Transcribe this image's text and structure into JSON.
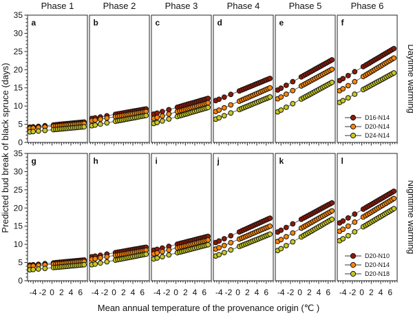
{
  "figure": {
    "column_titles": [
      "Phase 1",
      "Phase 2",
      "Phase 3",
      "Phase 4",
      "Phase 5",
      "Phase 6"
    ],
    "row_labels": [
      "Daytime warming",
      "Nighttime warming"
    ],
    "x_axis_label": "Mean annual temperature of the provenance origin (℃ )",
    "y_axis_label": "Predicted bud break of black spruce (days)"
  },
  "chart_data": {
    "type": "scatter",
    "title": "",
    "xlabel": "Mean annual temperature of the provenance origin (℃ )",
    "ylabel": "Predicted bud break of black spruce (days)",
    "xlim": [
      -5.2,
      7.5
    ],
    "ylim": [
      0,
      35
    ],
    "x_ticks": [
      -4,
      -2,
      0,
      2,
      4,
      6
    ],
    "x_tick_labels": [
      "-4",
      "-2",
      "0",
      "2",
      "4",
      "6"
    ],
    "y_ticks": [
      0,
      5,
      10,
      15,
      20,
      25,
      30,
      35
    ],
    "grid": false,
    "legend_position": "inside lower-right of last panel of each row",
    "series_colors": [
      "#8E1A08",
      "#FC8608",
      "#C8C822"
    ],
    "marker_outline": "#111111",
    "line_color": "#555555",
    "x_values": [
      -4.7,
      -4.0,
      -2.9,
      -1.5,
      0.3,
      0.8,
      1.2,
      1.6,
      2.0,
      2.4,
      2.8,
      3.2,
      3.6,
      4.0,
      4.4,
      4.8,
      5.2,
      5.6,
      6.0,
      6.4,
      6.8
    ],
    "note": "Each series is linear: y runs from y_start at x = -4.7 to y_end at x = 6.8 (days to bud break).",
    "rows": [
      {
        "warming": "Daytime warming",
        "legend": [
          "D16-N14",
          "D20-N14",
          "D24-N14"
        ],
        "panels": [
          {
            "letter": "a",
            "phase": "Phase 1",
            "series": [
              {
                "name": "D16-N14",
                "y_start": 4.2,
                "y_end": 5.6
              },
              {
                "name": "D20-N14",
                "y_start": 3.9,
                "y_end": 5.2
              },
              {
                "name": "D24-N14",
                "y_start": 2.9,
                "y_end": 4.3
              }
            ]
          },
          {
            "letter": "b",
            "phase": "Phase 2",
            "series": [
              {
                "name": "D16-N14",
                "y_start": 6.6,
                "y_end": 9.2
              },
              {
                "name": "D20-N14",
                "y_start": 6.0,
                "y_end": 8.5
              },
              {
                "name": "D24-N14",
                "y_start": 4.6,
                "y_end": 7.4
              }
            ]
          },
          {
            "letter": "c",
            "phase": "Phase 3",
            "series": [
              {
                "name": "D16-N14",
                "y_start": 7.8,
                "y_end": 12.1
              },
              {
                "name": "D20-N14",
                "y_start": 6.6,
                "y_end": 10.9
              },
              {
                "name": "D24-N14",
                "y_start": 5.2,
                "y_end": 9.6
              }
            ]
          },
          {
            "letter": "d",
            "phase": "Phase 4",
            "series": [
              {
                "name": "D16-N14",
                "y_start": 11.5,
                "y_end": 17.6
              },
              {
                "name": "D20-N14",
                "y_start": 8.5,
                "y_end": 15.0
              },
              {
                "name": "D24-N14",
                "y_start": 6.4,
                "y_end": 12.5
              }
            ]
          },
          {
            "letter": "e",
            "phase": "Phase 5",
            "series": [
              {
                "name": "D16-N14",
                "y_start": 14.4,
                "y_end": 22.7
              },
              {
                "name": "D20-N14",
                "y_start": 12.0,
                "y_end": 20.1
              },
              {
                "name": "D24-N14",
                "y_start": 8.4,
                "y_end": 16.5
              }
            ]
          },
          {
            "letter": "f",
            "phase": "Phase 6",
            "series": [
              {
                "name": "D16-N14",
                "y_start": 17.0,
                "y_end": 25.8
              },
              {
                "name": "D20-N14",
                "y_start": 14.2,
                "y_end": 23.2
              },
              {
                "name": "D24-N14",
                "y_start": 11.0,
                "y_end": 19.1
              }
            ]
          }
        ]
      },
      {
        "warming": "Nighttime warming",
        "legend": [
          "D20-N10",
          "D20-N14",
          "D20-N18"
        ],
        "panels": [
          {
            "letter": "g",
            "phase": "Phase 1",
            "series": [
              {
                "name": "D20-N10",
                "y_start": 4.3,
                "y_end": 5.7
              },
              {
                "name": "D20-N14",
                "y_start": 4.0,
                "y_end": 5.3
              },
              {
                "name": "D20-N18",
                "y_start": 3.0,
                "y_end": 4.4
              }
            ]
          },
          {
            "letter": "h",
            "phase": "Phase 2",
            "series": [
              {
                "name": "D20-N10",
                "y_start": 6.6,
                "y_end": 9.2
              },
              {
                "name": "D20-N14",
                "y_start": 5.9,
                "y_end": 8.4
              },
              {
                "name": "D20-N18",
                "y_start": 4.4,
                "y_end": 7.3
              }
            ]
          },
          {
            "letter": "i",
            "phase": "Phase 3",
            "series": [
              {
                "name": "D20-N10",
                "y_start": 8.4,
                "y_end": 12.2
              },
              {
                "name": "D20-N14",
                "y_start": 7.4,
                "y_end": 11.2
              },
              {
                "name": "D20-N18",
                "y_start": 6.0,
                "y_end": 9.9
              }
            ]
          },
          {
            "letter": "j",
            "phase": "Phase 4",
            "series": [
              {
                "name": "D20-N10",
                "y_start": 10.5,
                "y_end": 17.2
              },
              {
                "name": "D20-N14",
                "y_start": 8.7,
                "y_end": 15.0
              },
              {
                "name": "D20-N18",
                "y_start": 6.8,
                "y_end": 12.8
              }
            ]
          },
          {
            "letter": "k",
            "phase": "Phase 5",
            "series": [
              {
                "name": "D20-N10",
                "y_start": 13.4,
                "y_end": 21.4
              },
              {
                "name": "D20-N14",
                "y_start": 10.8,
                "y_end": 19.2
              },
              {
                "name": "D20-N18",
                "y_start": 8.3,
                "y_end": 16.9
              }
            ]
          },
          {
            "letter": "l",
            "phase": "Phase 6",
            "series": [
              {
                "name": "D20-N10",
                "y_start": 15.9,
                "y_end": 24.6
              },
              {
                "name": "D20-N14",
                "y_start": 13.6,
                "y_end": 22.6
              },
              {
                "name": "D20-N18",
                "y_start": 11.0,
                "y_end": 19.8
              }
            ]
          }
        ]
      }
    ]
  }
}
